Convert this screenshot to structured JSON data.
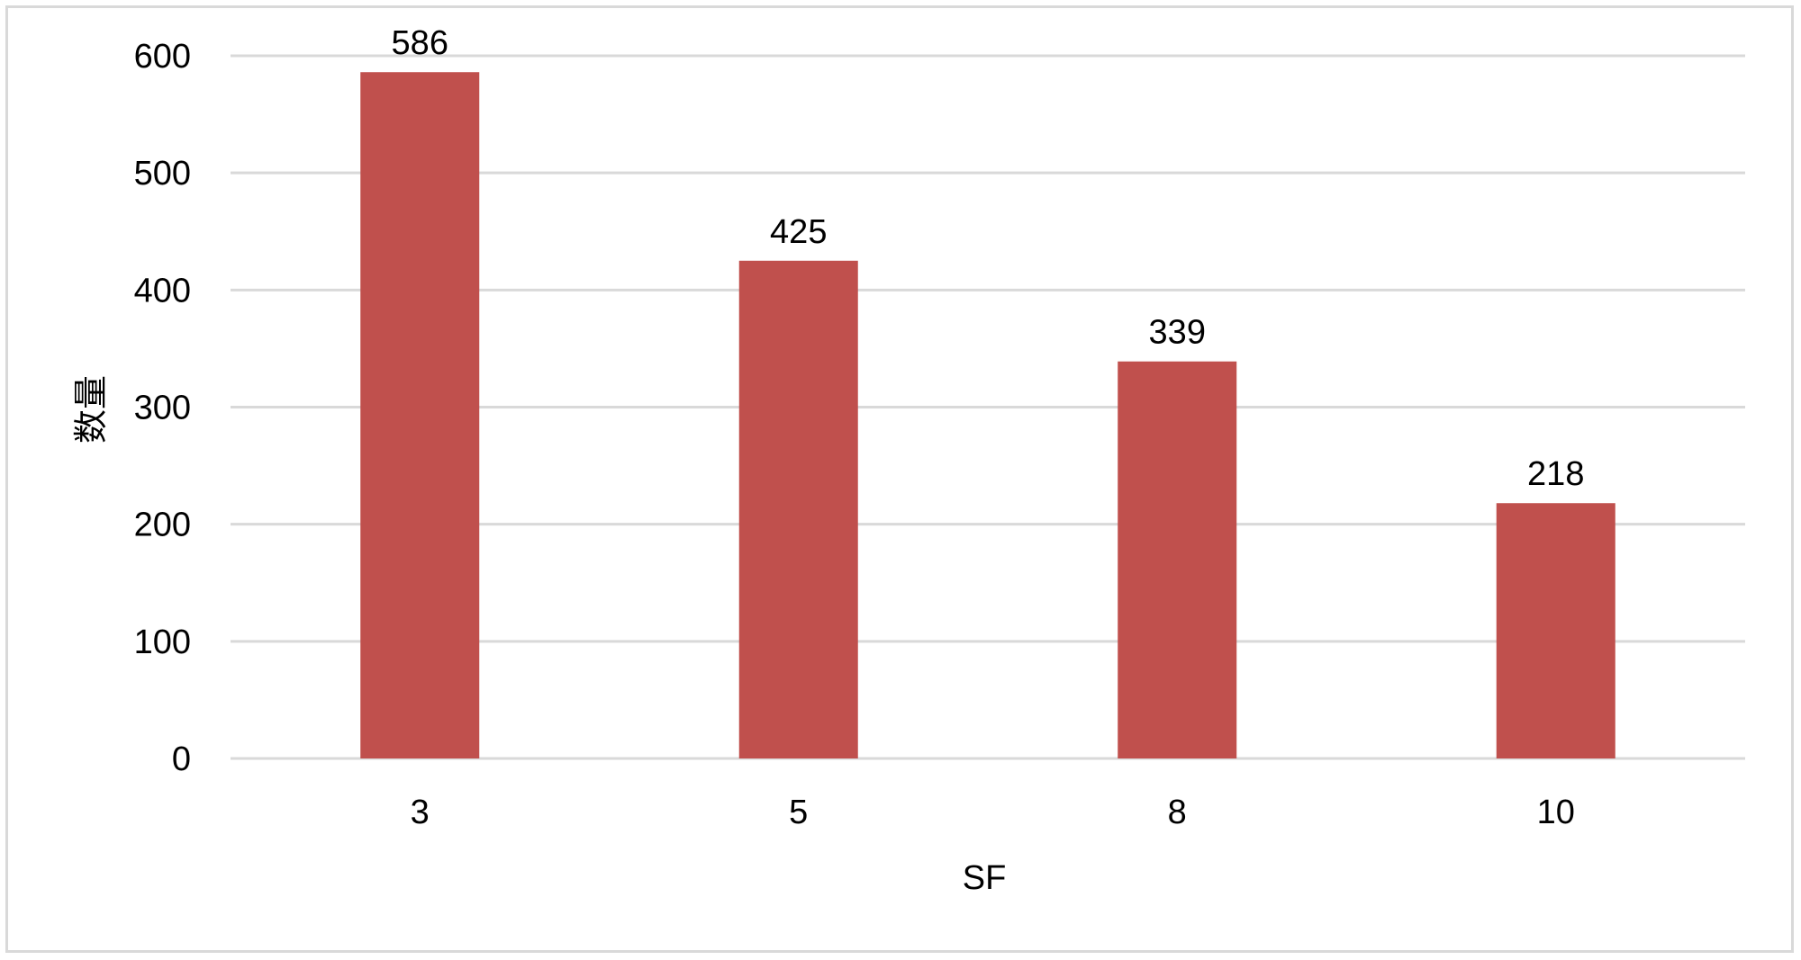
{
  "chart_data": {
    "type": "bar",
    "categories": [
      "3",
      "5",
      "8",
      "10"
    ],
    "values": [
      586,
      425,
      339,
      218
    ],
    "data_labels": [
      "586",
      "425",
      "339",
      "218"
    ],
    "title": "",
    "xlabel": "SF",
    "ylabel": "数量",
    "ylim": [
      0,
      600
    ],
    "yticks": [
      0,
      100,
      200,
      300,
      400,
      500,
      600
    ],
    "ytick_labels": [
      "0",
      "100",
      "200",
      "300",
      "400",
      "500",
      "600"
    ],
    "grid": true,
    "legend": "none",
    "colors": {
      "bar": "#c0504d",
      "grid": "#d9d9d9",
      "border": "#d9d9d9",
      "text": "#000000"
    }
  }
}
